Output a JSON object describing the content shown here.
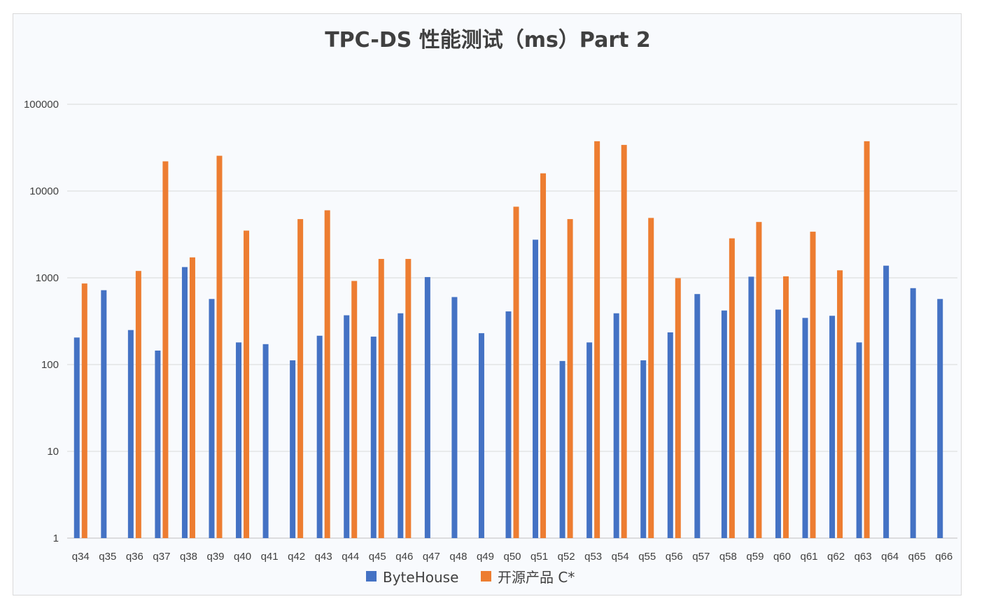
{
  "chart_data": {
    "type": "bar",
    "title": "TPC-DS 性能测试（ms）Part 2",
    "xlabel": "",
    "ylabel": "",
    "yscale": "log",
    "ylim": [
      1,
      100000
    ],
    "yticks": [
      {
        "value": 1,
        "label": "1"
      },
      {
        "value": 10,
        "label": "10"
      },
      {
        "value": 100,
        "label": "100"
      },
      {
        "value": 1000,
        "label": "1000"
      },
      {
        "value": 10000,
        "label": "10000"
      },
      {
        "value": 100000,
        "label": "100000"
      }
    ],
    "grid": true,
    "legend_position": "bottom",
    "categories": [
      "q34",
      "q35",
      "q36",
      "q37",
      "q38",
      "q39",
      "q40",
      "q41",
      "q42",
      "q43",
      "q44",
      "q45",
      "q46",
      "q47",
      "q48",
      "q49",
      "q50",
      "q51",
      "q52",
      "q53",
      "q54",
      "q55",
      "q56",
      "q57",
      "q58",
      "q59",
      "q60",
      "q61",
      "q62",
      "q63",
      "q64",
      "q65",
      "q66"
    ],
    "series": [
      {
        "name": "ByteHouse",
        "color": "#4472c4",
        "values": [
          205,
          720,
          250,
          145,
          1330,
          570,
          180,
          172,
          112,
          215,
          370,
          210,
          390,
          1020,
          600,
          230,
          410,
          2750,
          110,
          180,
          390,
          112,
          235,
          650,
          420,
          1030,
          430,
          345,
          365,
          180,
          1380,
          760,
          570
        ]
      },
      {
        "name": "开源产品 C*",
        "color": "#ed7d31",
        "values": [
          860,
          null,
          1200,
          22000,
          1720,
          25500,
          3500,
          null,
          4750,
          6000,
          920,
          1650,
          1650,
          null,
          null,
          null,
          6600,
          16000,
          4750,
          37500,
          34000,
          4900,
          990,
          null,
          2850,
          4400,
          1040,
          3400,
          1220,
          37500,
          null,
          null,
          null
        ]
      }
    ]
  }
}
